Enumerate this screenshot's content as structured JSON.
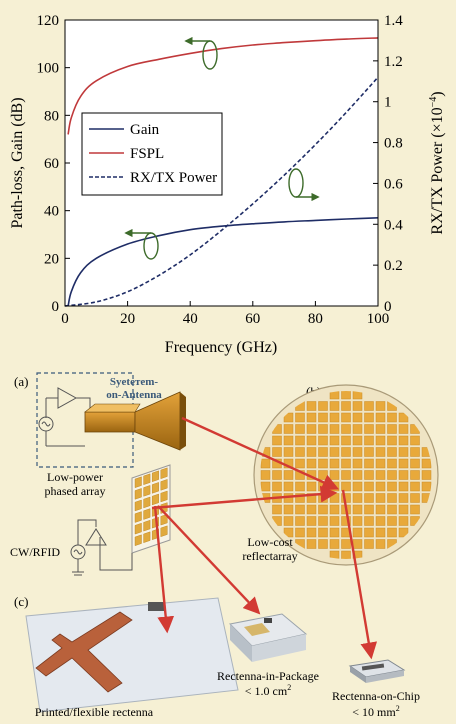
{
  "colors": {
    "background": "#f6f0d4",
    "gain": "#1f2d66",
    "fspl": "#c0393b",
    "power": "#1f2d66",
    "arrow_green": "#3d6b2a",
    "red_arrow": "#d23a33",
    "reflect_cell": "#e8a93b",
    "reflect_disc": "#efe4c4"
  },
  "chart_data": {
    "type": "line",
    "xlabel": "Frequency (GHz)",
    "ylabel_left": "Path-loss, Gain (dB)",
    "ylabel_right": "RX/TX Power (×10",
    "ylabel_right_exp": "−4",
    "ylabel_right_close": ")",
    "xlim": [
      0,
      100
    ],
    "ylim_left": [
      0,
      120
    ],
    "ylim_right": [
      0,
      1.4
    ],
    "x_ticks": [
      "0",
      "20",
      "40",
      "60",
      "80",
      "100"
    ],
    "y_left_ticks": [
      "0",
      "20",
      "40",
      "60",
      "80",
      "100",
      "120"
    ],
    "y_right_ticks": [
      "0",
      "0.2",
      "0.4",
      "0.6",
      "0.8",
      "1",
      "1.2",
      "1.4"
    ],
    "legend_position": "middle-left",
    "series": [
      {
        "name": "Gain",
        "axis": "left",
        "style": "solid",
        "x": [
          1,
          2,
          5,
          10,
          20,
          30,
          40,
          50,
          60,
          70,
          80,
          90,
          100
        ],
        "y": [
          0,
          6,
          14,
          20,
          26,
          29.5,
          32,
          33.5,
          34.5,
          35.3,
          35.9,
          36.5,
          37
        ]
      },
      {
        "name": "FSPL",
        "axis": "left",
        "style": "solid",
        "x": [
          1,
          2,
          5,
          10,
          20,
          30,
          40,
          50,
          60,
          70,
          80,
          90,
          100
        ],
        "y": [
          72,
          79,
          88,
          94.5,
          100.5,
          103.5,
          106,
          108,
          109.5,
          110.5,
          111.3,
          112,
          112.5
        ]
      },
      {
        "name": "RX/TX Power",
        "axis": "right",
        "style": "dashed",
        "x": [
          0,
          10,
          20,
          30,
          40,
          50,
          60,
          70,
          80,
          90,
          100
        ],
        "y": [
          0,
          0.02,
          0.07,
          0.15,
          0.25,
          0.37,
          0.5,
          0.64,
          0.79,
          0.95,
          1.12
        ]
      }
    ]
  },
  "diagram": {
    "label_a": "(a)",
    "label_b": "(b)",
    "label_c": "(c)",
    "soa_line1": "Syeteтem-",
    "soa_line2": "on-Antenna",
    "phased_line1": "Low-power",
    "phased_line2": "phased array",
    "cw_label": "CW/RFID",
    "reflect_line1": "Low-cost",
    "reflect_line2": "reflectarray",
    "printed_label": "Printed/flexible rectenna",
    "pkg_line1": "Rectenna-in-Package",
    "pkg_line2": "< 1.0 cm",
    "pkg_sup": "2",
    "chip_line1": "Rectenna-on-Chip",
    "chip_line2": "< 10 mm",
    "chip_sup": "2"
  }
}
